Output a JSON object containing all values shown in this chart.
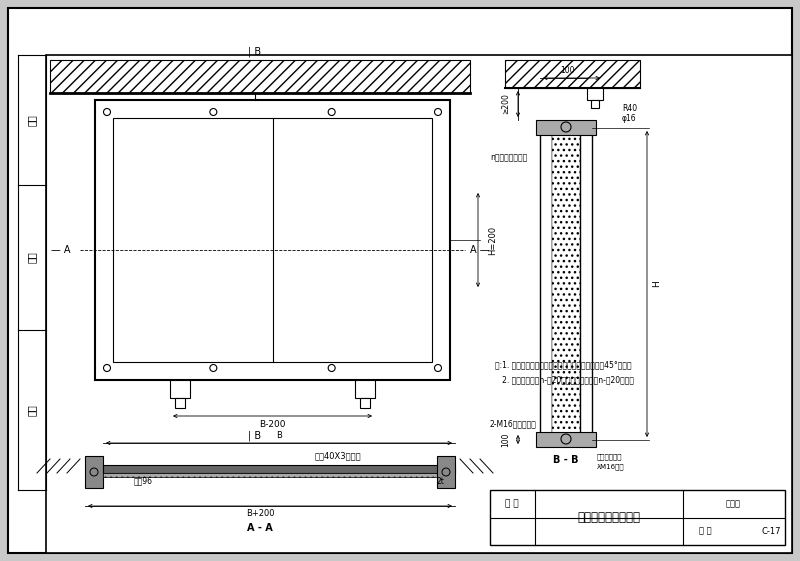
{
  "bg_color": "#c8c8c8",
  "paper_color": "#ffffff",
  "title_text": "风口防护密闭封堤板",
  "fig_num_label": "图集号",
  "page_label": "页 次",
  "page_num": "C-17",
  "fig_name_label": "图 名",
  "note1": "注:1. 橡胶垫与封堤板四周格缝，橡胶垫接头应采用45°斜接。",
  "note2": "   2. 封堤板上的孔n-？20应与门框上的螺孔n-？20配套。",
  "section_label": "截面40X3变截板",
  "rubber_label": "板厕96",
  "bb_label": "B - B",
  "aa_label": "A - A",
  "dim_b200": "B-200",
  "dim_bplus200": "B+200",
  "dim_b": "B",
  "dim_h200": "H=200",
  "dim_h": "H",
  "dim_100": "100",
  "dim_gte200": "≥200",
  "n_bolt_label": "n个固定装置螺母",
  "bolt_label1": "2-M16圆柱端螺钉",
  "bolt_label2": "安装螺板首件",
  "bolt_label3": "λM16螺栓",
  "r40_label": "R40",
  "phi16_label": "φ16",
  "left_cell1": "设计",
  "left_cell2": "审核",
  "left_cell3": "校对",
  "label_B_top": "| B",
  "label_B_bot": "| B",
  "label_A_left": "— A",
  "label_A_right": "A —",
  "dim_2t": "2t"
}
